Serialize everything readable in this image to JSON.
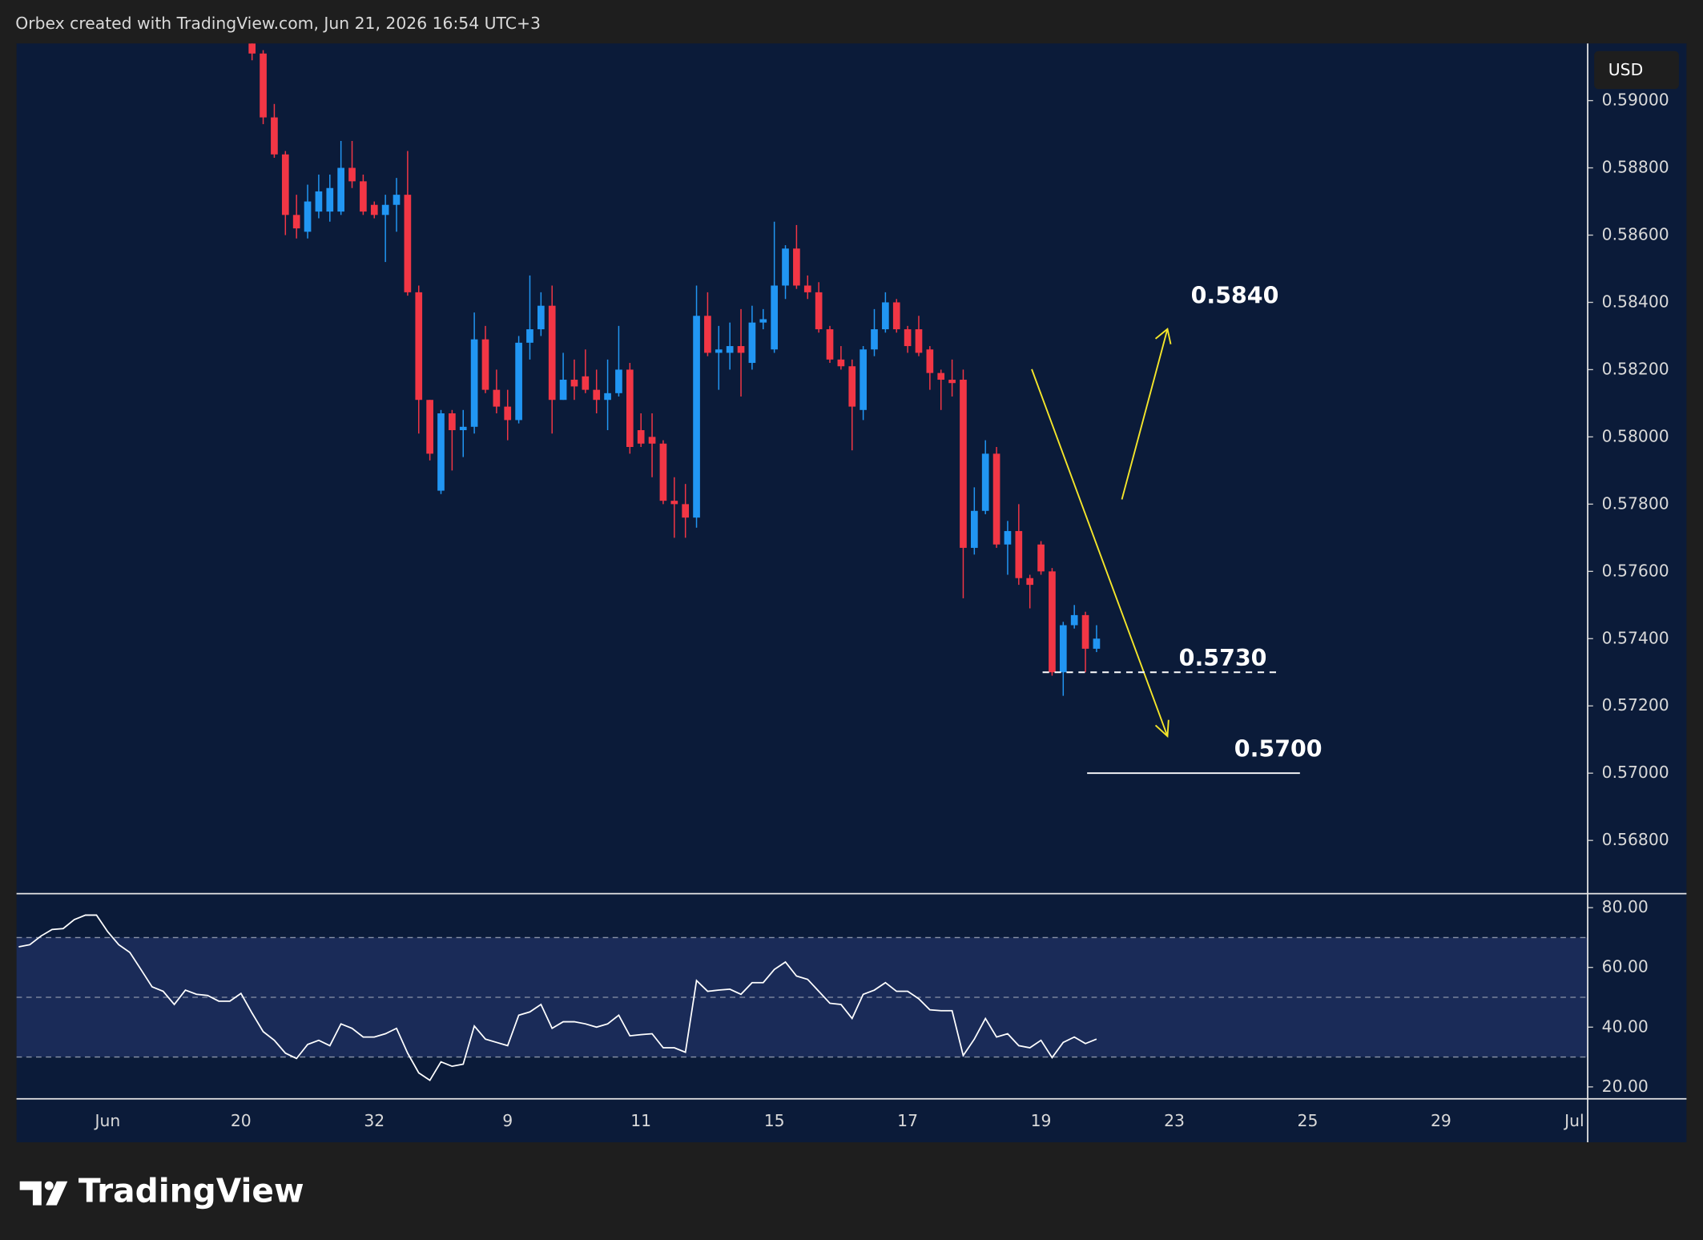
{
  "header": "Orbex created with TradingView.com, Jun 21, 2026 16:54 UTC+3",
  "footer": "TradingView",
  "chart_data": [
    {
      "type": "candlestick",
      "currency": "USD",
      "up_color": "#2196f3",
      "down_color": "#f23645",
      "xlim": [
        -0.2,
        141.2
      ],
      "ylim": [
        0.56645,
        0.5917
      ],
      "yticks": [
        {
          "value": 0.59,
          "label": "0.59000"
        },
        {
          "value": 0.588,
          "label": "0.58800"
        },
        {
          "value": 0.586,
          "label": "0.58600"
        },
        {
          "value": 0.584,
          "label": "0.58400"
        },
        {
          "value": 0.582,
          "label": "0.58200"
        },
        {
          "value": 0.58,
          "label": "0.58000"
        },
        {
          "value": 0.578,
          "label": "0.57800"
        },
        {
          "value": 0.576,
          "label": "0.57600"
        },
        {
          "value": 0.574,
          "label": "0.57400"
        },
        {
          "value": 0.572,
          "label": "0.57200"
        },
        {
          "value": 0.57,
          "label": "0.57000"
        },
        {
          "value": 0.568,
          "label": "0.56800"
        }
      ],
      "grid": false,
      "x": [
        21,
        22,
        23,
        24,
        25,
        26,
        27,
        28,
        29,
        30,
        31,
        32,
        33,
        34,
        35,
        36,
        37,
        38,
        39,
        40,
        41,
        42,
        43,
        44,
        45,
        46,
        47,
        48,
        49,
        50,
        51,
        52,
        53,
        54,
        55,
        56,
        57,
        58,
        59,
        60,
        61,
        62,
        63,
        64,
        65,
        66,
        67,
        68,
        69,
        70,
        71,
        72,
        73,
        74,
        75,
        76,
        77,
        78,
        79,
        80,
        81,
        82,
        83,
        84,
        85,
        86,
        87,
        88,
        89,
        90,
        91,
        92,
        93,
        94,
        95,
        96,
        97
      ],
      "open": [
        0.5917,
        0.5914,
        0.5895,
        0.5884,
        0.5866,
        0.5861,
        0.5867,
        0.5867,
        0.5867,
        0.588,
        0.5876,
        0.5869,
        0.5866,
        0.5869,
        0.5872,
        0.5843,
        0.5811,
        0.5784,
        0.5807,
        0.5802,
        0.5803,
        0.5829,
        0.5814,
        0.5809,
        0.5805,
        0.5828,
        0.5832,
        0.5839,
        0.5811,
        0.5817,
        0.5818,
        0.5814,
        0.5811,
        0.5813,
        0.582,
        0.5802,
        0.58,
        0.5798,
        0.5781,
        0.578,
        0.5776,
        0.5836,
        0.5825,
        0.5825,
        0.5827,
        0.5822,
        0.5834,
        0.5826,
        0.5845,
        0.5856,
        0.5845,
        0.5843,
        0.5832,
        0.5823,
        0.5821,
        0.5808,
        0.5826,
        0.5832,
        0.584,
        0.5832,
        0.5832,
        0.5826,
        0.5819,
        0.5817,
        0.5817,
        0.5767,
        0.5778,
        0.5795,
        0.5768,
        0.5772,
        0.5758,
        0.5768,
        0.576,
        0.573,
        0.5744,
        0.5747,
        0.5737
      ],
      "high": [
        0.592,
        0.5915,
        0.5899,
        0.5885,
        0.5872,
        0.5875,
        0.5878,
        0.5878,
        0.5888,
        0.5888,
        0.5878,
        0.587,
        0.5872,
        0.5877,
        0.5885,
        0.5845,
        0.5811,
        0.5808,
        0.5808,
        0.5808,
        0.5837,
        0.5833,
        0.582,
        0.5814,
        0.583,
        0.5848,
        0.5843,
        0.5845,
        0.5825,
        0.5823,
        0.5826,
        0.582,
        0.5823,
        0.5833,
        0.5822,
        0.5807,
        0.5807,
        0.5799,
        0.5788,
        0.5786,
        0.5845,
        0.5843,
        0.5833,
        0.5834,
        0.5838,
        0.5839,
        0.5838,
        0.5864,
        0.5857,
        0.5863,
        0.5848,
        0.5846,
        0.5833,
        0.5827,
        0.5823,
        0.5827,
        0.5838,
        0.5843,
        0.5841,
        0.5833,
        0.5836,
        0.5827,
        0.582,
        0.5823,
        0.582,
        0.5785,
        0.5799,
        0.5797,
        0.5775,
        0.578,
        0.5759,
        0.5769,
        0.5761,
        0.5745,
        0.575,
        0.5748,
        0.5744
      ],
      "low": [
        0.5912,
        0.5893,
        0.5883,
        0.586,
        0.5859,
        0.5859,
        0.5865,
        0.5864,
        0.5866,
        0.5874,
        0.5866,
        0.5865,
        0.5852,
        0.5861,
        0.5842,
        0.5801,
        0.5793,
        0.5783,
        0.579,
        0.5794,
        0.5801,
        0.5813,
        0.5807,
        0.5799,
        0.5804,
        0.5823,
        0.583,
        0.5801,
        0.5811,
        0.5811,
        0.5813,
        0.5807,
        0.5802,
        0.5812,
        0.5795,
        0.5797,
        0.5788,
        0.578,
        0.577,
        0.577,
        0.5773,
        0.5824,
        0.5814,
        0.582,
        0.5812,
        0.582,
        0.5832,
        0.5825,
        0.5841,
        0.5844,
        0.5841,
        0.5831,
        0.5822,
        0.582,
        0.5796,
        0.5805,
        0.5824,
        0.5831,
        0.5831,
        0.5825,
        0.5824,
        0.5814,
        0.5808,
        0.5812,
        0.5752,
        0.5765,
        0.5777,
        0.5767,
        0.5759,
        0.5756,
        0.5749,
        0.5759,
        0.5729,
        0.5723,
        0.5743,
        0.573,
        0.5736
      ],
      "close": [
        0.5914,
        0.5895,
        0.5884,
        0.5866,
        0.5862,
        0.587,
        0.5873,
        0.5874,
        0.588,
        0.5876,
        0.5867,
        0.5866,
        0.5869,
        0.5872,
        0.5843,
        0.5811,
        0.5795,
        0.5807,
        0.5802,
        0.5803,
        0.5829,
        0.5814,
        0.5809,
        0.5805,
        0.5828,
        0.5832,
        0.5839,
        0.5811,
        0.5817,
        0.5815,
        0.5814,
        0.5811,
        0.5813,
        0.582,
        0.5797,
        0.5798,
        0.5798,
        0.5781,
        0.578,
        0.5776,
        0.5836,
        0.5825,
        0.5826,
        0.5827,
        0.5825,
        0.5834,
        0.5835,
        0.5845,
        0.5856,
        0.5845,
        0.5843,
        0.5832,
        0.5823,
        0.5821,
        0.5809,
        0.5826,
        0.5832,
        0.584,
        0.5832,
        0.5827,
        0.5825,
        0.5819,
        0.5817,
        0.5816,
        0.5767,
        0.5778,
        0.5795,
        0.5768,
        0.5772,
        0.5758,
        0.5756,
        0.576,
        0.573,
        0.5744,
        0.5747,
        0.5737,
        0.574
      ],
      "annotations": [
        {
          "value": 0.584,
          "label": "0.5840"
        },
        {
          "value": 0.573,
          "label": "0.5730"
        },
        {
          "value": 0.57,
          "label": "0.5700"
        }
      ]
    },
    {
      "type": "line",
      "xlim": [
        -0.2,
        141.2
      ],
      "ylim": [
        16,
        84.7
      ],
      "yticks": [
        {
          "value": 80,
          "label": "80.00"
        },
        {
          "value": 60,
          "label": "60.00"
        },
        {
          "value": 40,
          "label": "40.00"
        },
        {
          "value": 20,
          "label": "20.00"
        }
      ],
      "bands": [
        70,
        50,
        30
      ],
      "band_color": "#1a2b58",
      "xticks": [
        {
          "value": 8,
          "label": "Jun"
        },
        20,
        32,
        {
          "value": 44,
          "label": "9"
        },
        {
          "value": 56,
          "label": "11"
        },
        {
          "value": 68,
          "label": "15"
        },
        {
          "value": 80,
          "label": "17"
        },
        {
          "value": 92,
          "label": "19"
        },
        {
          "value": 104,
          "label": "23"
        },
        {
          "value": 116,
          "label": "25"
        },
        {
          "value": 128,
          "label": "29"
        },
        {
          "value": 140,
          "label": "Jul"
        }
      ],
      "series": [
        {
          "color": "#ffffff",
          "x": [
            0,
            1,
            2,
            3,
            4,
            5,
            6,
            7,
            8,
            9,
            10,
            11,
            12,
            13,
            14,
            15,
            16,
            17,
            18,
            19,
            20,
            21,
            22,
            23,
            24,
            25,
            26,
            27,
            28,
            29,
            30,
            31,
            32,
            33,
            34,
            35,
            36,
            37,
            38,
            39,
            40,
            41,
            42,
            43,
            44,
            45,
            46,
            47,
            48,
            49,
            50,
            51,
            52,
            53,
            54,
            55,
            56,
            57,
            58,
            59,
            60,
            61,
            62,
            63,
            64,
            65,
            66,
            67,
            68,
            69,
            70,
            71,
            72,
            73,
            74,
            75,
            76,
            77,
            78,
            79,
            80,
            81,
            82,
            83,
            84,
            85,
            86,
            87,
            88,
            89,
            90,
            91,
            92,
            93,
            94,
            95,
            96,
            97
          ],
          "values": [
            66.9,
            67.6,
            70.5,
            72.7,
            73,
            76,
            77.5,
            77.5,
            72,
            67.6,
            65,
            59.3,
            53.5,
            52,
            47.6,
            52.4,
            51,
            50.6,
            48.7,
            48.7,
            51.3,
            44.7,
            38.5,
            35.6,
            31.3,
            29.5,
            34.2,
            35.6,
            33.8,
            41.1,
            39.6,
            36.7,
            36.7,
            37.8,
            39.6,
            31.3,
            24.7,
            22.2,
            28.4,
            26.9,
            27.6,
            40.4,
            36,
            34.9,
            33.8,
            44,
            45.1,
            47.6,
            39.6,
            41.8,
            41.8,
            41.1,
            40,
            41.1,
            44,
            37.1,
            37.5,
            37.8,
            33.1,
            33.1,
            31.6,
            55.6,
            52,
            52.4,
            52.7,
            51,
            54.9,
            54.9,
            59.3,
            61.8,
            57.1,
            56,
            52,
            48,
            47.6,
            42.9,
            51,
            52.4,
            54.9,
            52,
            52,
            49.5,
            45.8,
            45.5,
            45.5,
            30.5,
            36,
            42.9,
            36.7,
            37.8,
            33.8,
            33.1,
            35.6,
            29.8,
            34.9,
            36.7,
            34.5,
            36
          ]
        }
      ]
    }
  ]
}
